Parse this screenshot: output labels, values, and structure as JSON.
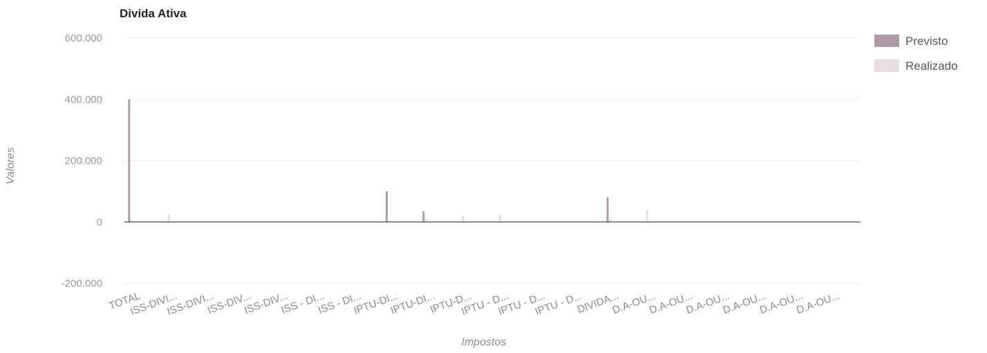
{
  "chart_data": {
    "type": "bar",
    "title": "Divida Ativa",
    "xlabel": "Impostos",
    "ylabel": "Valores",
    "ylim": [
      -200000,
      600000
    ],
    "yticks": [
      "600.000",
      "400.000",
      "200.000",
      "0",
      "-200.000"
    ],
    "ytick_values": [
      600000,
      400000,
      200000,
      0,
      -200000
    ],
    "grid": true,
    "legend_position": "top-right",
    "categories": [
      "TOTAL",
      "ISS-DIVI...",
      "ISS-DIVI...",
      "ISS-DIV...",
      "ISS-DIV...",
      "ISS - DI...",
      "ISS - DI...",
      "IPTU-DI...",
      "IPTU-DI...",
      "IPTU-D...",
      "IPTU - D...",
      "IPTU - D...",
      "IPTU - D...",
      "DIVIDA...",
      "D.A-OU...",
      "D.A-OU...",
      "D.A-OU...",
      "D.A-OU...",
      "D.A-OU...",
      "D.A-OU..."
    ],
    "series": [
      {
        "name": "Previsto",
        "color": "#b09aaa",
        "values": [
          400000,
          0,
          0,
          0,
          0,
          0,
          0,
          100000,
          35000,
          0,
          0,
          0,
          0,
          80000,
          0,
          0,
          0,
          0,
          0,
          0
        ]
      },
      {
        "name": "Realizado",
        "color": "#e8dde2",
        "values": [
          5000,
          25000,
          0,
          0,
          0,
          0,
          0,
          5000,
          8000,
          20000,
          25000,
          0,
          0,
          10000,
          40000,
          0,
          0,
          0,
          0,
          0
        ]
      }
    ]
  }
}
